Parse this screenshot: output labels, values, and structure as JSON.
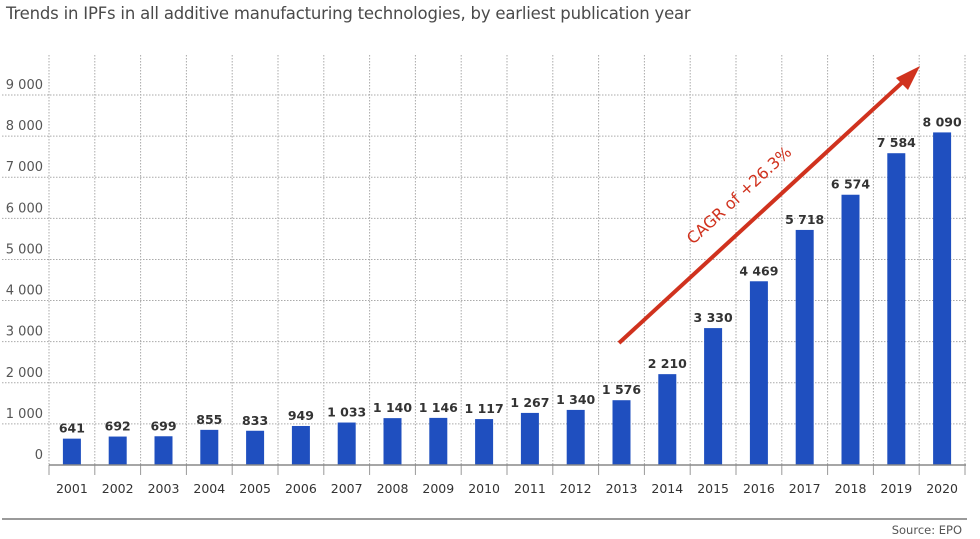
{
  "chart_data": {
    "type": "bar",
    "title": "Trends in IPFs in all additive manufacturing technologies, by earliest publication year",
    "xlabel": "",
    "ylabel": "",
    "categories": [
      "2001",
      "2002",
      "2003",
      "2004",
      "2005",
      "2006",
      "2007",
      "2008",
      "2009",
      "2010",
      "2011",
      "2012",
      "2013",
      "2014",
      "2015",
      "2016",
      "2017",
      "2018",
      "2019",
      "2020"
    ],
    "values": [
      641,
      692,
      699,
      855,
      833,
      949,
      1033,
      1140,
      1146,
      1117,
      1267,
      1340,
      1576,
      2210,
      3330,
      4469,
      5718,
      6574,
      7584,
      8090
    ],
    "data_labels": [
      "641",
      "692",
      "699",
      "855",
      "833",
      "949",
      "1 033",
      "1 140",
      "1 146",
      "1 117",
      "1 267",
      "1 340",
      "1 576",
      "2 210",
      "3 330",
      "4 469",
      "5 718",
      "6 574",
      "7 584",
      "8 090"
    ],
    "ylim": [
      0,
      9000
    ],
    "yticks": [
      0,
      1000,
      2000,
      3000,
      4000,
      5000,
      6000,
      7000,
      8000,
      9000
    ],
    "ytick_labels": [
      "0",
      "1 000",
      "2 000",
      "3 000",
      "4 000",
      "5 000",
      "6 000",
      "7 000",
      "8 000",
      "9 000"
    ],
    "grid": true,
    "bar_color": "#1f4fbf",
    "annotation": {
      "text": "CAGR of +26.3%",
      "color": "#d0321e",
      "shape": "arrow",
      "from_year": "2013",
      "to_year": "2020"
    },
    "source": "Source: EPO"
  }
}
